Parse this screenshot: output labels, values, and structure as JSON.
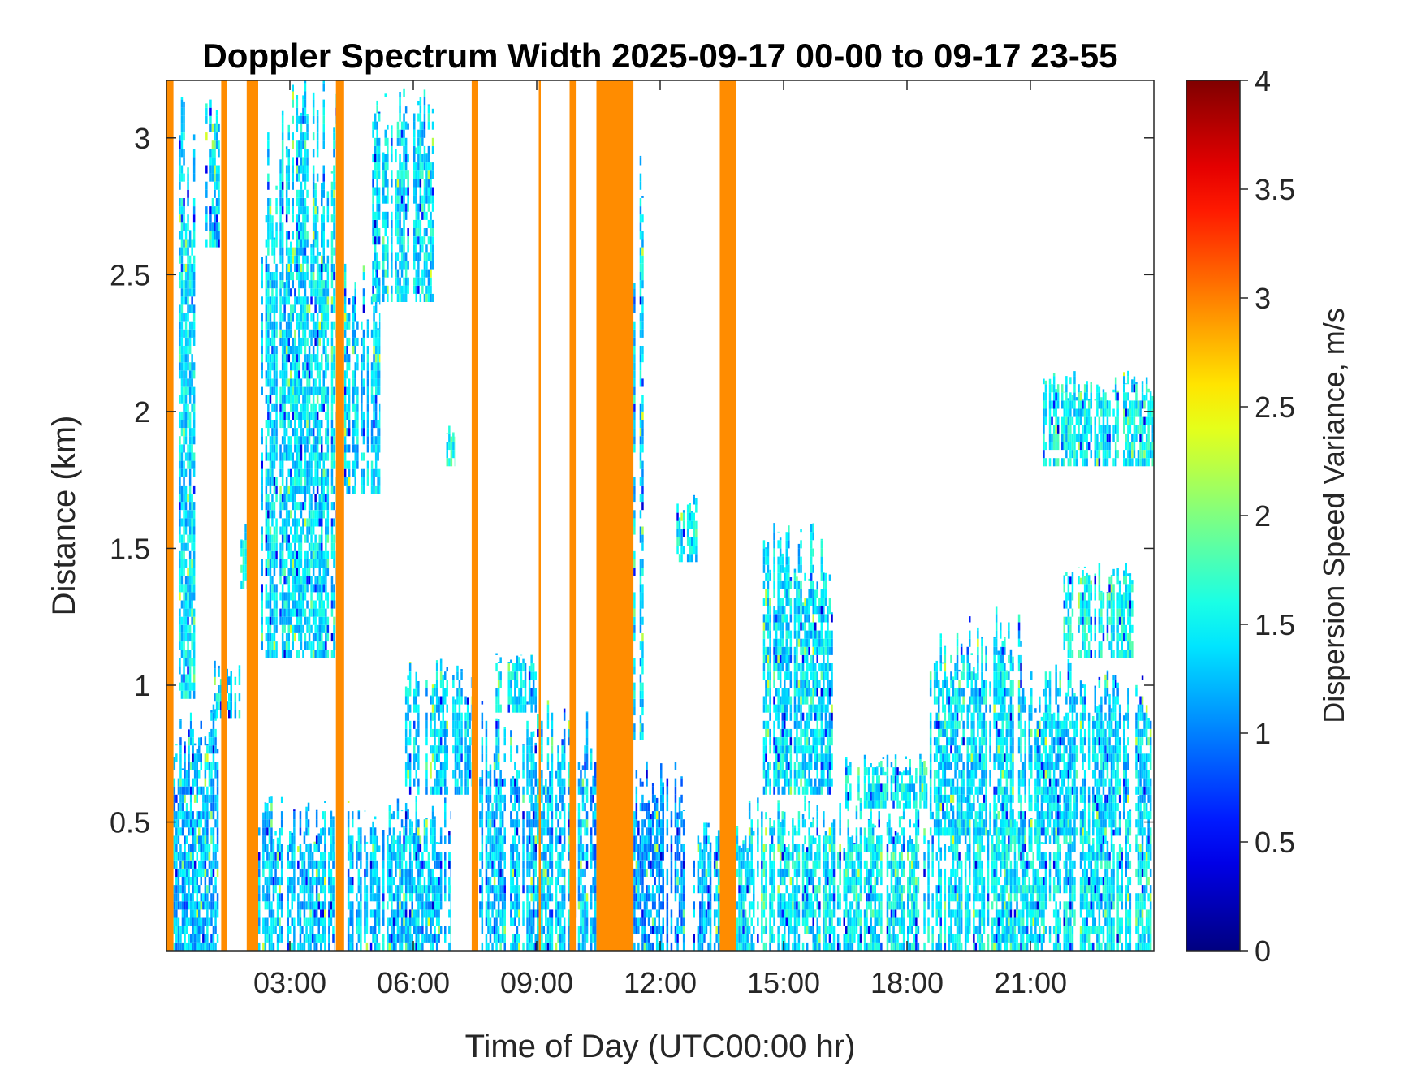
{
  "chart_data": {
    "type": "heatmap",
    "title": "Doppler Spectrum Width 2025-09-17 00-00 to 09-17 23-55",
    "xlabel": "Time of Day (UTC00:00 hr)",
    "ylabel": "Distance (km)",
    "xlim": [
      0,
      24
    ],
    "ylim": [
      0.03,
      3.21
    ],
    "x_ticks": [
      {
        "value": 3,
        "label": "03:00"
      },
      {
        "value": 6,
        "label": "06:00"
      },
      {
        "value": 9,
        "label": "09:00"
      },
      {
        "value": 12,
        "label": "12:00"
      },
      {
        "value": 15,
        "label": "15:00"
      },
      {
        "value": 18,
        "label": "18:00"
      },
      {
        "value": 21,
        "label": "21:00"
      }
    ],
    "y_ticks": [
      {
        "value": 0.5,
        "label": "0.5"
      },
      {
        "value": 1,
        "label": "1"
      },
      {
        "value": 1.5,
        "label": "1.5"
      },
      {
        "value": 2,
        "label": "2"
      },
      {
        "value": 2.5,
        "label": "2.5"
      },
      {
        "value": 3,
        "label": "3"
      }
    ],
    "colorbar": {
      "label": "Dispersion Speed Variance, m/s",
      "colormap": "jet",
      "range": [
        0,
        4
      ],
      "ticks": [
        {
          "value": 0,
          "label": "0"
        },
        {
          "value": 0.5,
          "label": "0.5"
        },
        {
          "value": 1,
          "label": "1"
        },
        {
          "value": 1.5,
          "label": "1.5"
        },
        {
          "value": 2,
          "label": "2"
        },
        {
          "value": 2.5,
          "label": "2.5"
        },
        {
          "value": 3,
          "label": "3"
        },
        {
          "value": 3.5,
          "label": "3.5"
        },
        {
          "value": 4,
          "label": "4"
        }
      ]
    },
    "saturated_columns": {
      "value": 3,
      "color": "#FF8C00",
      "ranges_hours": [
        [
          0.0,
          0.17
        ],
        [
          1.33,
          1.46
        ],
        [
          1.95,
          2.23
        ],
        [
          4.12,
          4.32
        ],
        [
          7.42,
          7.58
        ],
        [
          9.05,
          9.1
        ],
        [
          9.8,
          9.95
        ],
        [
          10.45,
          11.35
        ],
        [
          13.45,
          13.85
        ]
      ]
    },
    "echo_regions": [
      {
        "x": [
          0.17,
          1.3
        ],
        "y": [
          0.03,
          0.95
        ],
        "mean": 1.25
      },
      {
        "x": [
          0.2,
          0.7
        ],
        "y": [
          0.95,
          3.21
        ],
        "mean": 1.4
      },
      {
        "x": [
          0.8,
          1.3
        ],
        "y": [
          2.6,
          3.21
        ],
        "mean": 1.35
      },
      {
        "x": [
          1.15,
          1.8
        ],
        "y": [
          0.88,
          1.1
        ],
        "mean": 1.4
      },
      {
        "x": [
          1.8,
          2.0
        ],
        "y": [
          1.35,
          1.6
        ],
        "mean": 1.5
      },
      {
        "x": [
          2.23,
          4.1
        ],
        "y": [
          0.03,
          0.6
        ],
        "mean": 1.3
      },
      {
        "x": [
          2.3,
          4.1
        ],
        "y": [
          1.1,
          3.21
        ],
        "mean": 1.4
      },
      {
        "x": [
          4.32,
          5.2
        ],
        "y": [
          1.7,
          2.6
        ],
        "mean": 1.35
      },
      {
        "x": [
          4.4,
          6.9
        ],
        "y": [
          0.03,
          0.6
        ],
        "mean": 1.3
      },
      {
        "x": [
          5.0,
          6.5
        ],
        "y": [
          2.4,
          3.21
        ],
        "mean": 1.4
      },
      {
        "x": [
          5.8,
          7.4
        ],
        "y": [
          0.6,
          1.1
        ],
        "mean": 1.35
      },
      {
        "x": [
          6.8,
          7.0
        ],
        "y": [
          1.8,
          1.95
        ],
        "mean": 1.6
      },
      {
        "x": [
          7.6,
          10.4
        ],
        "y": [
          0.03,
          0.95
        ],
        "mean": 1.3
      },
      {
        "x": [
          8.0,
          9.0
        ],
        "y": [
          0.9,
          1.12
        ],
        "mean": 1.4
      },
      {
        "x": [
          10.3,
          12.6
        ],
        "y": [
          0.03,
          0.75
        ],
        "mean": 1.1
      },
      {
        "x": [
          11.0,
          11.6
        ],
        "y": [
          0.8,
          3.21
        ],
        "mean": 1.35
      },
      {
        "x": [
          12.4,
          12.9
        ],
        "y": [
          1.45,
          1.7
        ],
        "mean": 1.45
      },
      {
        "x": [
          12.8,
          13.45
        ],
        "y": [
          0.03,
          0.5
        ],
        "mean": 1.25
      },
      {
        "x": [
          13.85,
          23.95
        ],
        "y": [
          0.03,
          0.6
        ],
        "mean": 1.45
      },
      {
        "x": [
          14.5,
          16.2
        ],
        "y": [
          0.6,
          1.6
        ],
        "mean": 1.4
      },
      {
        "x": [
          16.5,
          18.5
        ],
        "y": [
          0.55,
          0.75
        ],
        "mean": 1.45
      },
      {
        "x": [
          18.5,
          20.8
        ],
        "y": [
          0.45,
          1.3
        ],
        "mean": 1.4
      },
      {
        "x": [
          20.8,
          24.0
        ],
        "y": [
          0.45,
          1.1
        ],
        "mean": 1.35
      },
      {
        "x": [
          21.8,
          23.5
        ],
        "y": [
          1.1,
          1.45
        ],
        "mean": 1.55
      },
      {
        "x": [
          21.3,
          24.0
        ],
        "y": [
          1.8,
          2.15
        ],
        "mean": 1.5
      }
    ]
  }
}
